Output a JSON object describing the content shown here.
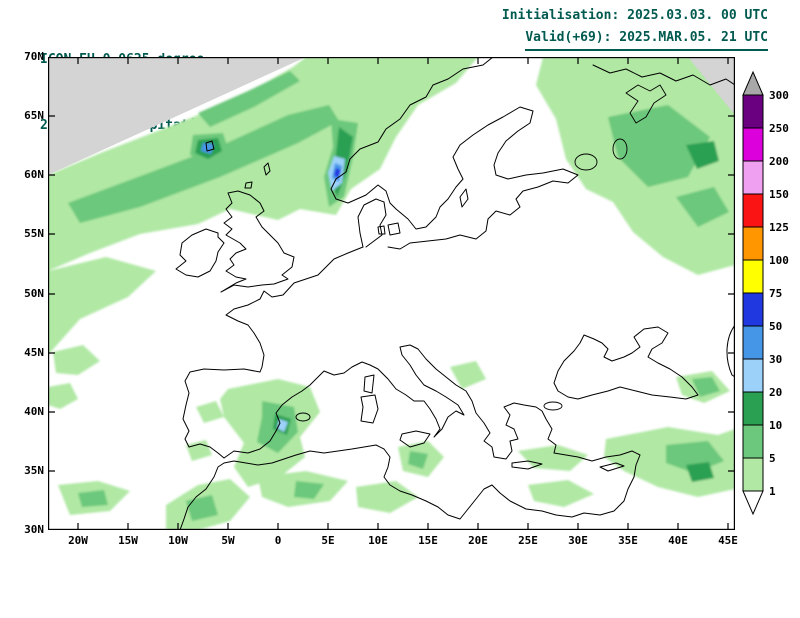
{
  "header": {
    "model_line": "ICON EU 0.0625 degree",
    "product_line": "24-h Acc.Precipitation (mm/24h)",
    "init_line": "Initialisation: 2025.03.03. 00 UTC",
    "valid_line": "Valid(+69): 2025.MAR.05. 21 UTC",
    "text_color": "#005a50"
  },
  "map": {
    "lat_labels": [
      "70N",
      "65N",
      "60N",
      "55N",
      "50N",
      "45N",
      "40N",
      "35N",
      "30N"
    ],
    "lon_labels": [
      "20W",
      "15W",
      "10W",
      "5W",
      "0",
      "5E",
      "10E",
      "15E",
      "20E",
      "25E",
      "30E",
      "35E",
      "40E",
      "45E"
    ],
    "background": "#ffffff",
    "out_of_domain_color": "#d4d4d4",
    "coastline_color": "#000000"
  },
  "palette": {
    "p1": "#b0e8a4",
    "p5": "#6cc87c",
    "p10": "#2aa052",
    "p20": "#9cd2fa",
    "p30": "#4696e8",
    "p50": "#2038e0"
  },
  "colorbar": {
    "unit": "mm/24h",
    "labels_top_to_bottom": [
      "300",
      "250",
      "200",
      "150",
      "125",
      "100",
      "75",
      "50",
      "30",
      "20",
      "10",
      "5",
      "1"
    ],
    "segments_top_to_bottom": [
      {
        "range": "250-300",
        "color": "#6a0080"
      },
      {
        "range": "200-250",
        "color": "#dc00dc"
      },
      {
        "range": "150-200",
        "color": "#f0a0f0"
      },
      {
        "range": "125-150",
        "color": "#fa1414"
      },
      {
        "range": "100-125",
        "color": "#ff9600"
      },
      {
        "range": "75-100",
        "color": "#ffff00"
      },
      {
        "range": "50-75",
        "color": "#2038e0"
      },
      {
        "range": "30-50",
        "color": "#4696e8"
      },
      {
        "range": "20-30",
        "color": "#9cd2fa"
      },
      {
        "range": "10-20",
        "color": "#2aa052"
      },
      {
        "range": "5-10",
        "color": "#6cc87c"
      },
      {
        "range": "1-5",
        "color": "#b0e8a4"
      }
    ],
    "over_color": "#a8a8a8",
    "under_color": "#ffffff"
  }
}
